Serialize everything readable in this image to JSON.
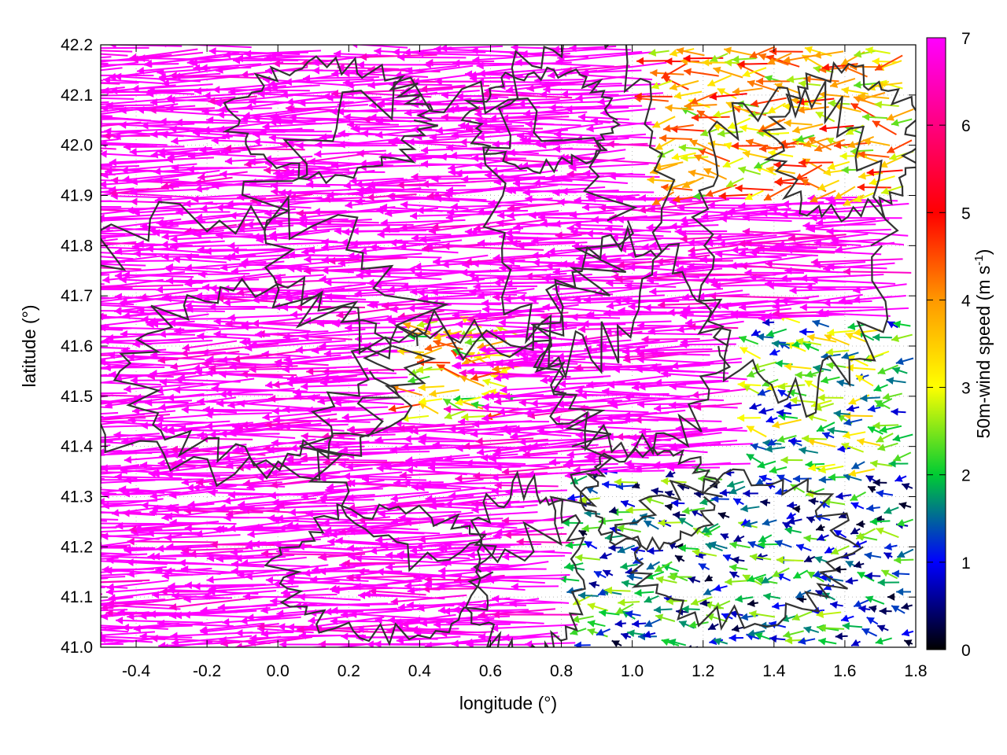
{
  "chart_data": {
    "type": "vector-field",
    "xlabel": "longitude (°)",
    "ylabel": "latitude (°)",
    "colorbar_label": "50m-wind speed (m s",
    "colorbar_label_sup": "-1",
    "colorbar_label_end": ")",
    "xlim": [
      -0.5,
      1.8
    ],
    "ylim": [
      41.0,
      42.2
    ],
    "x_ticks": [
      "-0.4",
      "-0.2",
      "0.0",
      "0.2",
      "0.4",
      "0.6",
      "0.8",
      "1.0",
      "1.2",
      "1.4",
      "1.6",
      "1.8"
    ],
    "y_ticks": [
      "41.0",
      "41.1",
      "41.2",
      "41.3",
      "41.4",
      "41.5",
      "41.6",
      "41.7",
      "41.8",
      "41.9",
      "42.0",
      "42.1",
      "42.2"
    ],
    "colorbar_range": [
      0,
      7
    ],
    "colorbar_ticks": [
      "0",
      "1",
      "2",
      "3",
      "4",
      "5",
      "6",
      "7"
    ],
    "colormap": [
      "#000000",
      "#0000ff",
      "#00cc33",
      "#ffff00",
      "#ff9900",
      "#ff0000",
      "#ff00ff"
    ],
    "contour_color": "#333333",
    "grid": "dotted",
    "wind_field_description_regions": [
      {
        "region": "west and central",
        "speed_ms": 7,
        "direction": "from east (westward flow)"
      },
      {
        "region": "south-east corner",
        "speed_ms": 1.5,
        "direction": "variable, light"
      }
    ]
  }
}
